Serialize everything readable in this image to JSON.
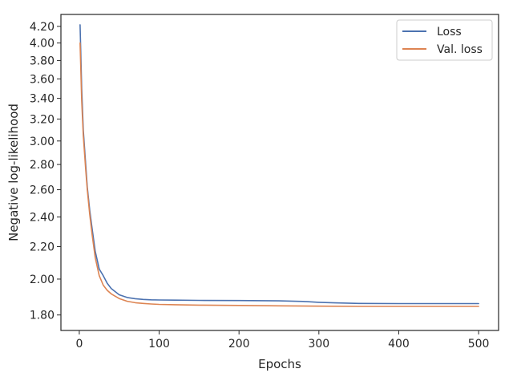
{
  "chart_data": {
    "type": "line",
    "title": "",
    "xlabel": "Epochs",
    "ylabel": "Negative log-likelihood",
    "yscale": "log",
    "xlim": [
      -23,
      525
    ],
    "ylim": [
      1.72,
      4.35
    ],
    "xticks": [
      0,
      100,
      200,
      300,
      400,
      500
    ],
    "xtick_labels": [
      "0",
      "100",
      "200",
      "300",
      "400",
      "500"
    ],
    "yticks": [
      1.8,
      2.0,
      2.2,
      2.4,
      2.6,
      2.8,
      3.0,
      3.2,
      3.4,
      3.6,
      3.8,
      4.0,
      4.2
    ],
    "ytick_labels": [
      "1.80",
      "2.00",
      "2.20",
      "2.40",
      "2.60",
      "2.80",
      "3.00",
      "3.20",
      "3.40",
      "3.60",
      "3.80",
      "4.00",
      "4.20"
    ],
    "grid": false,
    "legend_position": "top-right",
    "series": [
      {
        "name": "Loss",
        "color": "#4c72b0",
        "x": [
          1,
          3,
          5,
          8,
          10,
          13,
          16,
          20,
          25,
          30,
          35,
          40,
          50,
          60,
          70,
          80,
          90,
          100,
          120,
          150,
          200,
          250,
          280,
          300,
          320,
          350,
          400,
          450,
          500
        ],
        "y": [
          4.22,
          3.5,
          3.1,
          2.8,
          2.62,
          2.45,
          2.32,
          2.17,
          2.06,
          2.02,
          1.975,
          1.945,
          1.91,
          1.895,
          1.888,
          1.884,
          1.882,
          1.881,
          1.88,
          1.879,
          1.878,
          1.876,
          1.873,
          1.868,
          1.865,
          1.862,
          1.861,
          1.861,
          1.861
        ]
      },
      {
        "name": "Val. loss",
        "color": "#dd8452",
        "x": [
          1,
          3,
          5,
          8,
          10,
          13,
          16,
          20,
          25,
          30,
          35,
          40,
          50,
          60,
          70,
          80,
          90,
          100,
          120,
          150,
          200,
          250,
          300,
          350,
          400,
          450,
          500
        ],
        "y": [
          4.0,
          3.38,
          3.05,
          2.76,
          2.6,
          2.42,
          2.28,
          2.13,
          2.02,
          1.965,
          1.935,
          1.915,
          1.889,
          1.874,
          1.866,
          1.862,
          1.859,
          1.857,
          1.855,
          1.853,
          1.851,
          1.849,
          1.847,
          1.846,
          1.846,
          1.846,
          1.846
        ]
      }
    ]
  }
}
